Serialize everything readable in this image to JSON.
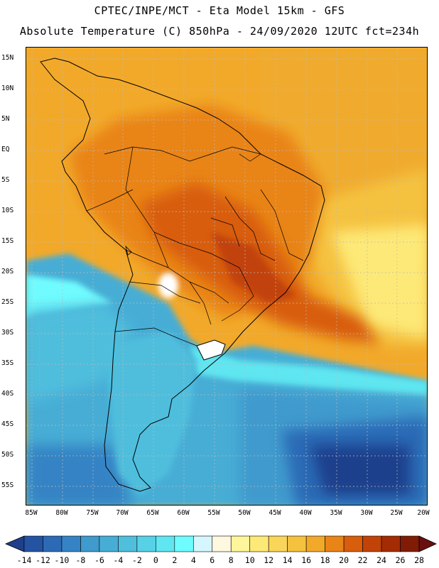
{
  "header": {
    "line1": "CPTEC/INPE/MCT -  Eta Model 15km - GFS",
    "line2": "Absolute Temperature (C) 850hPa - 24/09/2020 12UTC fct=234h"
  },
  "map": {
    "region": "South America",
    "lat_labels": [
      "15N",
      "10N",
      "5N",
      "EQ",
      "5S",
      "10S",
      "15S",
      "20S",
      "25S",
      "30S",
      "35S",
      "40S",
      "45S",
      "50S",
      "55S"
    ],
    "lon_labels": [
      "85W",
      "80W",
      "75W",
      "70W",
      "65W",
      "60W",
      "55W",
      "50W",
      "45W",
      "40W",
      "35W",
      "30W",
      "25W",
      "20W"
    ],
    "lat_range": [
      17,
      -58
    ],
    "lon_range": [
      -86,
      -20
    ]
  },
  "colorbar": {
    "labels": [
      "-14",
      "-12",
      "-10",
      "-8",
      "-6",
      "-4",
      "-2",
      "0",
      "2",
      "4",
      "6",
      "8",
      "10",
      "12",
      "14",
      "16",
      "18",
      "20",
      "22",
      "24",
      "26",
      "28"
    ],
    "colors": [
      "#1e3f8c",
      "#2453a2",
      "#2c6ab6",
      "#3583c4",
      "#3f9acd",
      "#47add5",
      "#50bedd",
      "#56d1e6",
      "#5fe6f0",
      "#6ffcff",
      "#d6f6ff",
      "#fff8e0",
      "#fff59b",
      "#fde977",
      "#f9d659",
      "#f5c23f",
      "#f2a92a",
      "#e98417",
      "#d85d0d",
      "#c24308",
      "#a32c05",
      "#801c05",
      "#6a0f10"
    ]
  }
}
